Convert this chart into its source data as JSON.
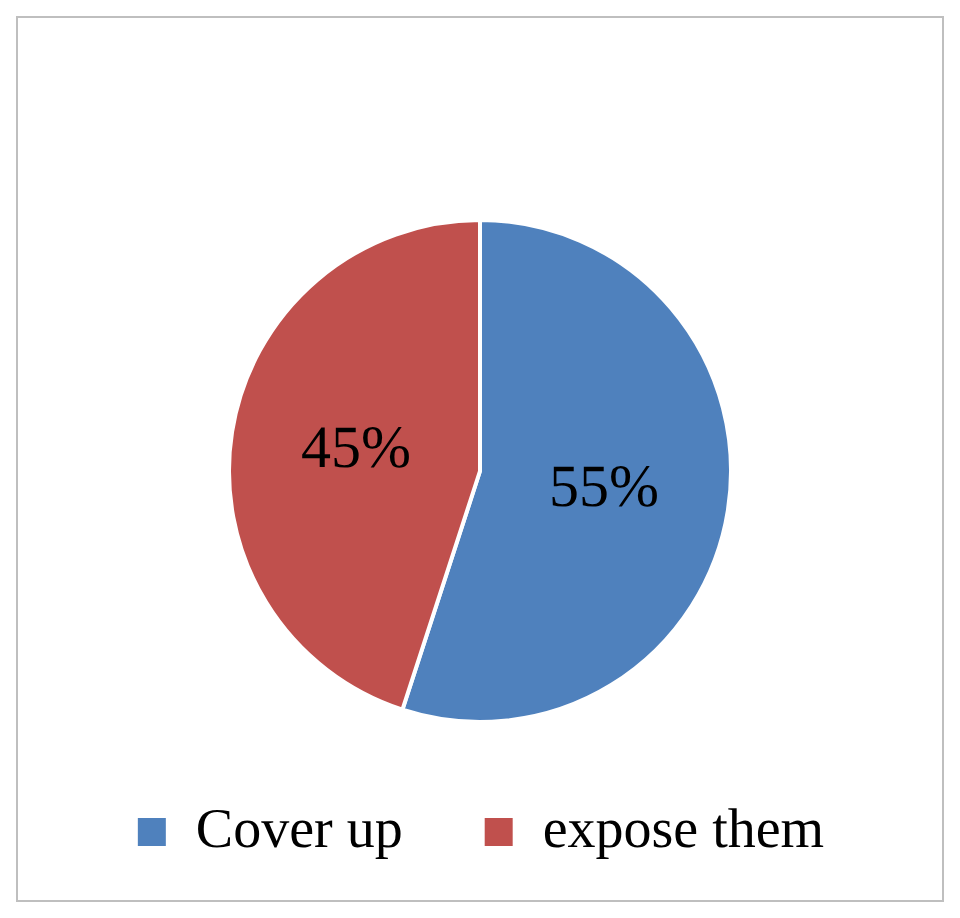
{
  "chart_data": {
    "type": "pie",
    "categories": [
      "Cover up",
      "expose them"
    ],
    "values": [
      55,
      45
    ],
    "colors": [
      "#4f81bd",
      "#c0504d"
    ],
    "value_labels": [
      "55%",
      "45%"
    ],
    "legend": "bottom"
  }
}
